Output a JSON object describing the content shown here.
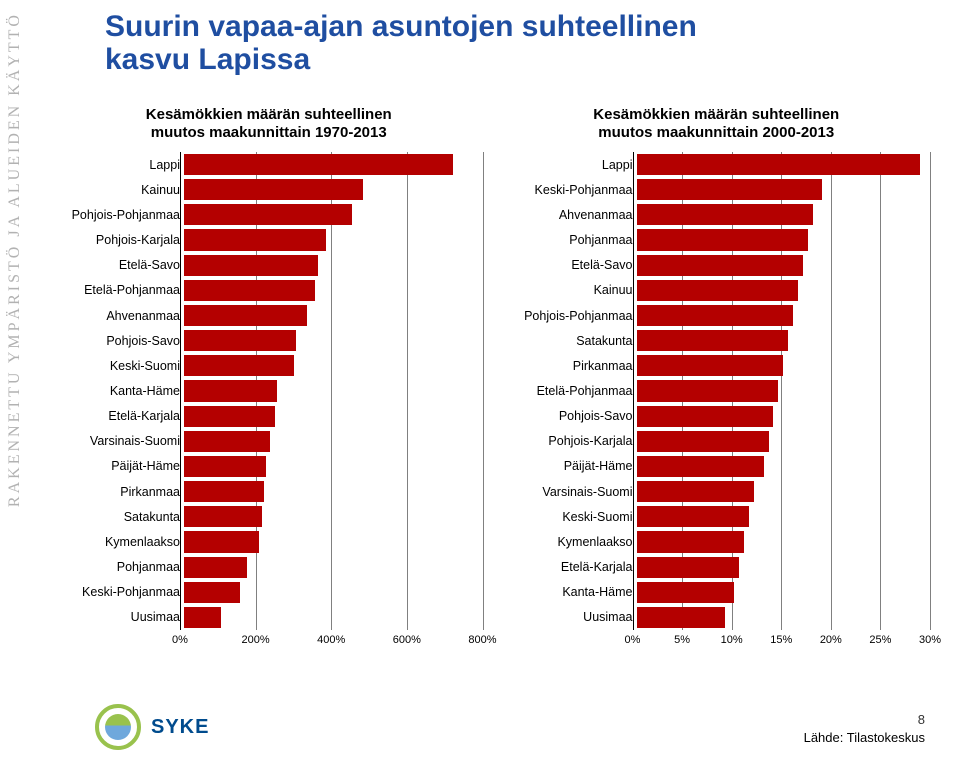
{
  "sidebar_text": "RAKENNETTU YMPÄRISTÖ JA ALUEIDEN KÄYTTÖ",
  "title_line1": "Suurin vapaa-ajan asuntojen suhteellinen",
  "title_line2": "kasvu Lapissa",
  "title_color": "#1f4ea1",
  "bar_color": "#b40000",
  "grid_color": "#808080",
  "label_fontsize": 12.5,
  "tick_fontsize": 11,
  "logo_text": "SYKE",
  "page_number": "8",
  "source_label": "Lähde: Tilastokeskus",
  "chart1": {
    "title_l1": "Kesämökkien määrän suhteellinen",
    "title_l2": "muutos maakunnittain 1970-2013",
    "label_width": 125,
    "xmax": 800,
    "ticks": [
      0,
      200,
      400,
      600,
      800
    ],
    "tick_labels": [
      "0%",
      "200%",
      "400%",
      "600%",
      "800%"
    ],
    "data": [
      {
        "label": "Lappi",
        "value": 720
      },
      {
        "label": "Kainuu",
        "value": 480
      },
      {
        "label": "Pohjois-Pohjanmaa",
        "value": 450
      },
      {
        "label": "Pohjois-Karjala",
        "value": 380
      },
      {
        "label": "Etelä-Savo",
        "value": 360
      },
      {
        "label": "Etelä-Pohjanmaa",
        "value": 350
      },
      {
        "label": "Ahvenanmaa",
        "value": 330
      },
      {
        "label": "Pohjois-Savo",
        "value": 300
      },
      {
        "label": "Keski-Suomi",
        "value": 295
      },
      {
        "label": "Kanta-Häme",
        "value": 250
      },
      {
        "label": "Etelä-Karjala",
        "value": 245
      },
      {
        "label": "Varsinais-Suomi",
        "value": 230
      },
      {
        "label": "Päijät-Häme",
        "value": 220
      },
      {
        "label": "Pirkanmaa",
        "value": 215
      },
      {
        "label": "Satakunta",
        "value": 210
      },
      {
        "label": "Kymenlaakso",
        "value": 200
      },
      {
        "label": "Pohjanmaa",
        "value": 170
      },
      {
        "label": "Keski-Pohjanmaa",
        "value": 150
      },
      {
        "label": "Uusimaa",
        "value": 100
      }
    ]
  },
  "chart2": {
    "title_l1": "Kesämökkien määrän suhteellinen",
    "title_l2": "muutos maakunnittain 2000-2013",
    "label_width": 130,
    "xmax": 30,
    "ticks": [
      0,
      5,
      10,
      15,
      20,
      25,
      30
    ],
    "tick_labels": [
      "0%",
      "5%",
      "10%",
      "15%",
      "20%",
      "25%",
      "30%"
    ],
    "data": [
      {
        "label": "Lappi",
        "value": 29
      },
      {
        "label": "Keski-Pohjanmaa",
        "value": 19
      },
      {
        "label": "Ahvenanmaa",
        "value": 18
      },
      {
        "label": "Pohjanmaa",
        "value": 17.5
      },
      {
        "label": "Etelä-Savo",
        "value": 17
      },
      {
        "label": "Kainuu",
        "value": 16.5
      },
      {
        "label": "Pohjois-Pohjanmaa",
        "value": 16
      },
      {
        "label": "Satakunta",
        "value": 15.5
      },
      {
        "label": "Pirkanmaa",
        "value": 15
      },
      {
        "label": "Etelä-Pohjanmaa",
        "value": 14.5
      },
      {
        "label": "Pohjois-Savo",
        "value": 14
      },
      {
        "label": "Pohjois-Karjala",
        "value": 13.5
      },
      {
        "label": "Päijät-Häme",
        "value": 13
      },
      {
        "label": "Varsinais-Suomi",
        "value": 12
      },
      {
        "label": "Keski-Suomi",
        "value": 11.5
      },
      {
        "label": "Kymenlaakso",
        "value": 11
      },
      {
        "label": "Etelä-Karjala",
        "value": 10.5
      },
      {
        "label": "Kanta-Häme",
        "value": 10
      },
      {
        "label": "Uusimaa",
        "value": 9
      }
    ]
  }
}
